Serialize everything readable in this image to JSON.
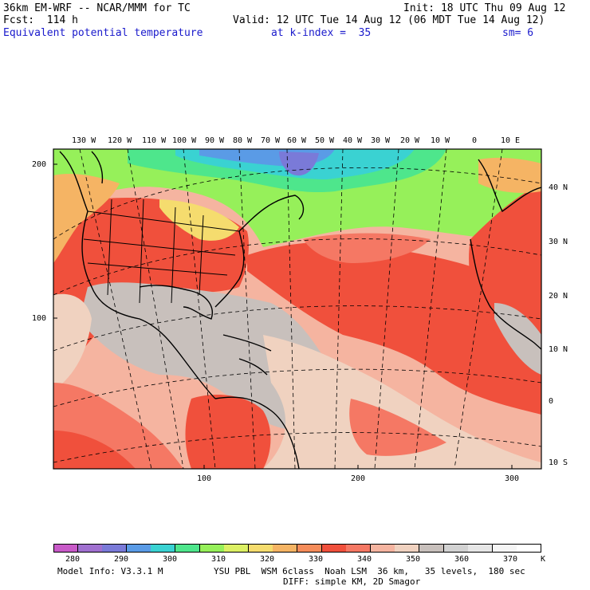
{
  "header": {
    "model": "36km EM-WRF -- NCAR/MMM for TC",
    "init": "Init: 18 UTC Thu 09 Aug 12",
    "fcst": "Fcst:  114 h",
    "valid": "Valid: 12 UTC Tue 14 Aug 12 (06 MDT Tue 14 Aug 12)",
    "field": "Equivalent potential temperature",
    "level": "at k-index =  35",
    "sm": "sm= 6"
  },
  "map": {
    "lon_labels": [
      "130 W",
      "120 W",
      "110 W",
      "100 W",
      "90 W",
      "80 W",
      "70 W",
      "60 W",
      "50 W",
      "40 W",
      "30 W",
      "20 W",
      "10 W",
      "0",
      "10 E"
    ],
    "lat_labels": [
      "40 N",
      "30 N",
      "20 N",
      "10 N",
      "0",
      "10 S"
    ],
    "y_ticks": [
      "200",
      "100"
    ],
    "x_ticks": [
      "100",
      "200",
      "300"
    ]
  },
  "colorbar": {
    "labels": [
      "280",
      "290",
      "300",
      "310",
      "320",
      "330",
      "340",
      "350",
      "360",
      "370"
    ],
    "unit": "K",
    "colors": [
      "#c85ac8",
      "#a070d0",
      "#7a7ad8",
      "#5a9be6",
      "#3ad2d2",
      "#4ee68c",
      "#96f05a",
      "#dcf064",
      "#f5dc6e",
      "#f5b464",
      "#f58c5a",
      "#f0503c",
      "#f57864",
      "#f5b4a0",
      "#f0d2c0",
      "#c8c0bc",
      "#d2d2d2",
      "#e6e6e6",
      "#f5f5f5",
      "#ffffff"
    ]
  },
  "footer": {
    "model_info": "Model Info: V3.3.1 M",
    "physics": "YSU PBL  WSM 6class  Noah LSM  36 km,   35 levels,  180 sec",
    "diff": "DIFF: simple KM, 2D Smagor"
  }
}
